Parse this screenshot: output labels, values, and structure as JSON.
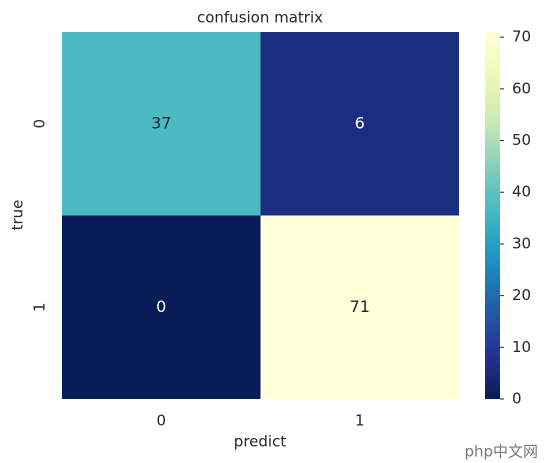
{
  "chart_data": {
    "type": "heatmap",
    "title": "confusion matrix",
    "x_label": "predict",
    "y_label": "true",
    "x_categories": [
      "0",
      "1"
    ],
    "y_categories": [
      "0",
      "1"
    ],
    "values": [
      [
        37,
        6
      ],
      [
        0,
        71
      ]
    ],
    "colormap": [
      "#081d58",
      "#253494",
      "#225ea8",
      "#1d91c0",
      "#41b6c4",
      "#7fcdbb",
      "#c7e9b4",
      "#edf8b1",
      "#ffffd9"
    ],
    "clim": [
      0,
      71
    ],
    "cticks": [
      0,
      10,
      20,
      30,
      40,
      50,
      60,
      70
    ],
    "watermark": "php中文网"
  }
}
